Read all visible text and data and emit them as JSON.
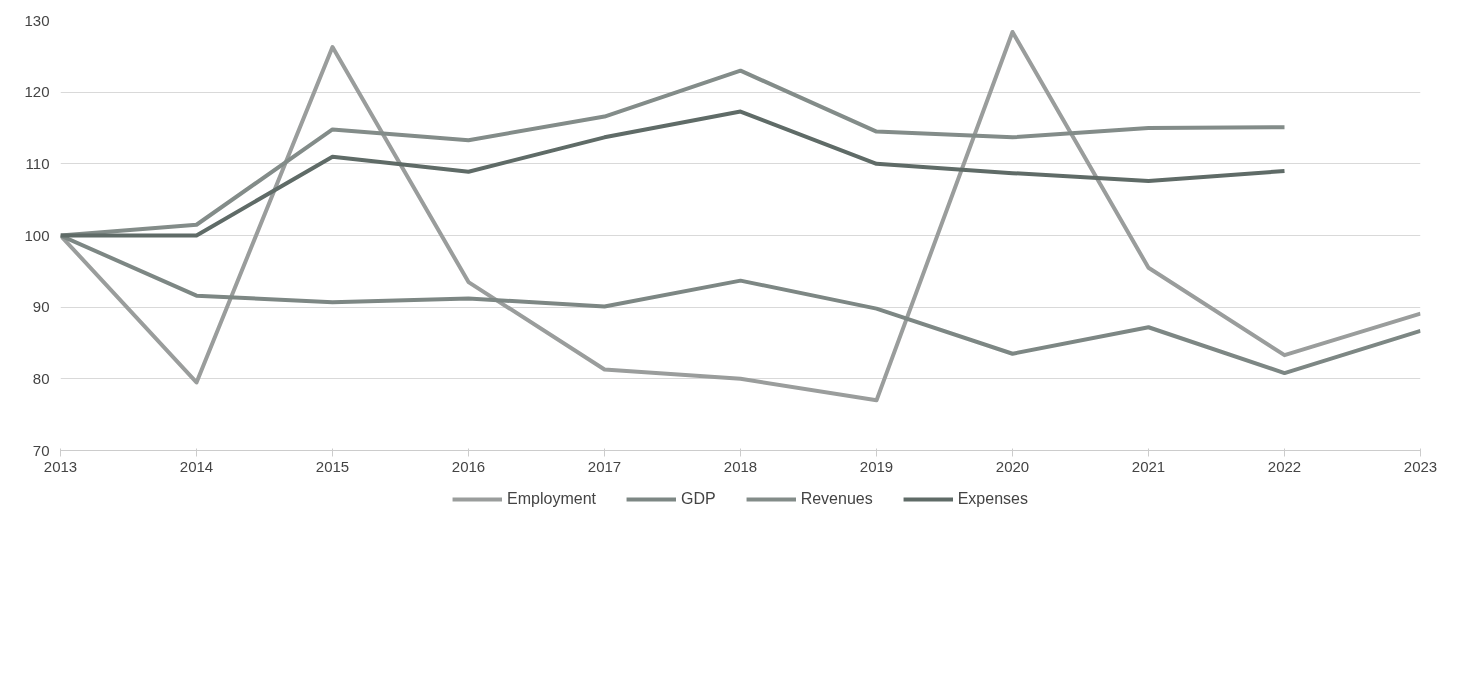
{
  "chart_data": {
    "type": "line",
    "x": [
      2013,
      2014,
      2015,
      2016,
      2017,
      2018,
      2019,
      2020,
      2021,
      2022,
      2023
    ],
    "xlim": [
      2013,
      2023
    ],
    "xticks": [
      2013,
      2014,
      2015,
      2016,
      2017,
      2018,
      2019,
      2020,
      2021,
      2022,
      2023
    ],
    "ylim": [
      70,
      130
    ],
    "yticks": [
      70,
      80,
      90,
      100,
      110,
      120,
      130
    ],
    "grid": "y",
    "legend": "bottom",
    "marker": "none",
    "line_style": "solid",
    "series": [
      {
        "name": "Employment",
        "color": "#9a9d9c",
        "values": [
          100,
          79.5,
          126.3,
          93.5,
          81.3,
          80,
          77,
          128.4,
          95.5,
          83.3,
          89.1
        ]
      },
      {
        "name": "GDP",
        "color": "#7d8784",
        "values": [
          100,
          91.6,
          90.7,
          91.2,
          90.1,
          93.7,
          89.8,
          83.5,
          87.2,
          80.8,
          86.7
        ]
      },
      {
        "name": "Revenues",
        "color": "#838c89",
        "values": [
          100,
          101.5,
          114.8,
          113.3,
          116.6,
          123,
          114.5,
          113.7,
          115,
          115.1,
          null
        ]
      },
      {
        "name": "Expenses",
        "color": "#5f6b67",
        "values": [
          100,
          100,
          111,
          108.9,
          113.7,
          117.3,
          110,
          108.7,
          107.6,
          109,
          null
        ]
      }
    ]
  }
}
